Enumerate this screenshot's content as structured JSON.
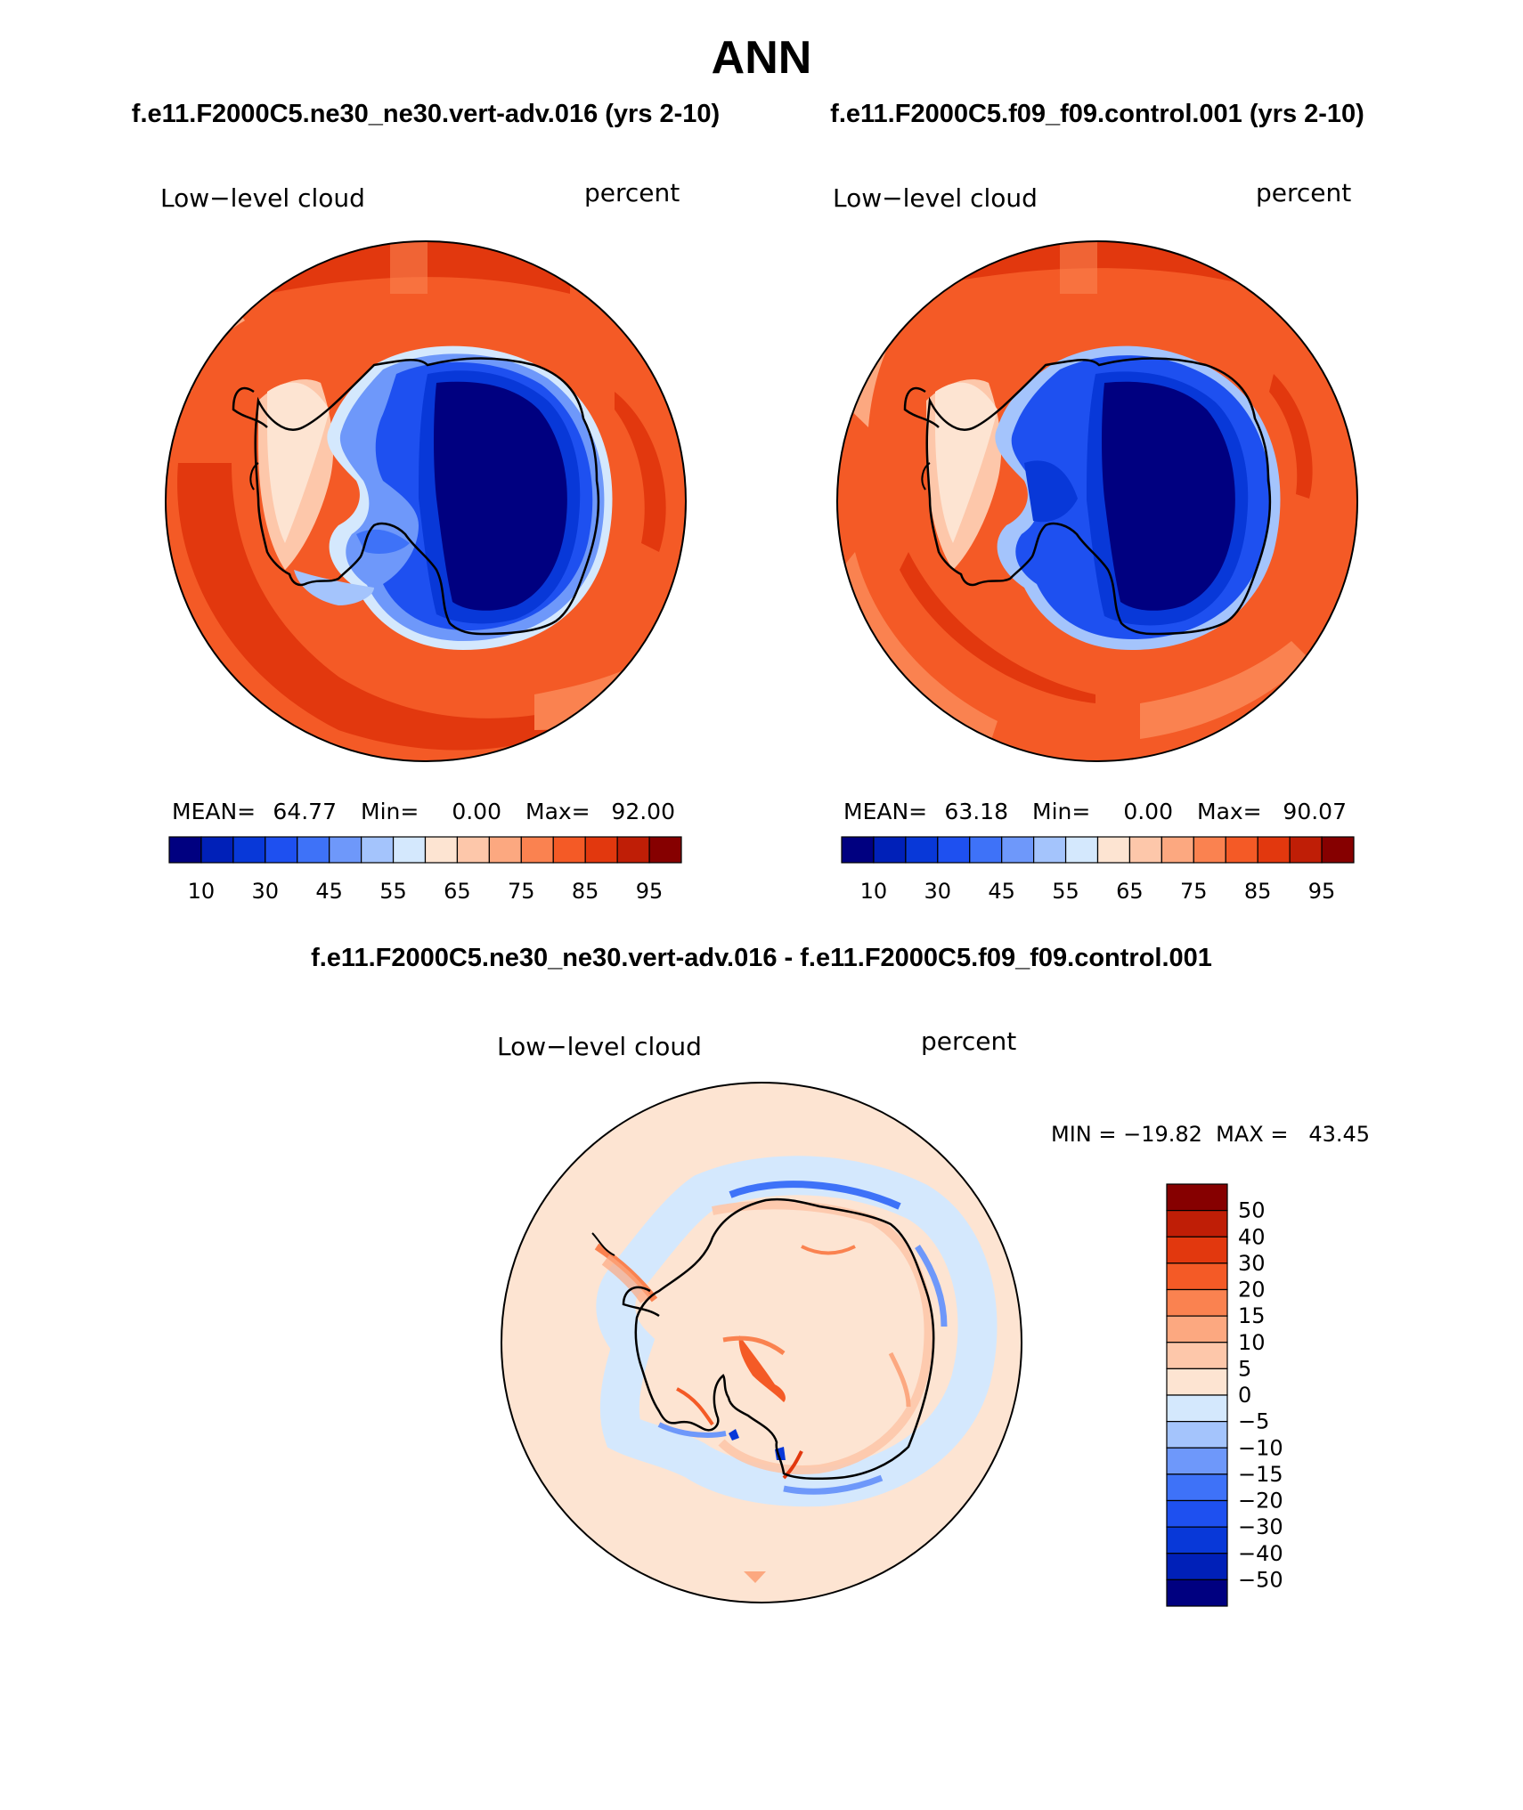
{
  "title": "ANN",
  "panels": {
    "left": {
      "case_title": "f.e11.F2000C5.ne30_ne30.vert-adv.016 (yrs 2-10)",
      "variable": "Low−level cloud",
      "units": "percent",
      "stats": {
        "mean_label": "MEAN=",
        "mean": "64.77",
        "min_label": "Min=",
        "min": "0.00",
        "max_label": "Max=",
        "max": "92.00"
      }
    },
    "right": {
      "case_title": "f.e11.F2000C5.f09_f09.control.001 (yrs 2-10)",
      "variable": "Low−level cloud",
      "units": "percent",
      "stats": {
        "mean_label": "MEAN=",
        "mean": "63.18",
        "min_label": "Min=",
        "min": "0.00",
        "max_label": "Max=",
        "max": "90.07"
      }
    },
    "diff": {
      "case_title": "f.e11.F2000C5.ne30_ne30.vert-adv.016 - f.e11.F2000C5.f09_f09.control.001",
      "variable": "Low−level cloud",
      "units": "percent",
      "minmax": "MIN = −19.82  MAX =   43.45"
    }
  },
  "colorbars": {
    "field": {
      "colors": [
        "#000080",
        "#0020b8",
        "#0838d8",
        "#1e50f0",
        "#3e72f8",
        "#6e98fa",
        "#a4c4fc",
        "#d4e8fd",
        "#fde4d2",
        "#fdc7aa",
        "#fca880",
        "#fa8250",
        "#f45a26",
        "#e2380e",
        "#bf1e06",
        "#860000"
      ],
      "tick_labels": [
        "10",
        "30",
        "45",
        "55",
        "65",
        "75",
        "85",
        "95"
      ]
    },
    "diff": {
      "colors": [
        "#860000",
        "#bf1e06",
        "#e2380e",
        "#f45a26",
        "#fa8250",
        "#fca880",
        "#fdc7aa",
        "#fde4d2",
        "#d4e8fd",
        "#a4c4fc",
        "#6e98fa",
        "#3e72f8",
        "#1e50f0",
        "#0838d8",
        "#0020b8",
        "#000080"
      ],
      "tick_labels": [
        "50",
        "40",
        "30",
        "20",
        "15",
        "10",
        "5",
        "0",
        "−5",
        "−10",
        "−15",
        "−20",
        "−30",
        "−40",
        "−50"
      ]
    }
  }
}
